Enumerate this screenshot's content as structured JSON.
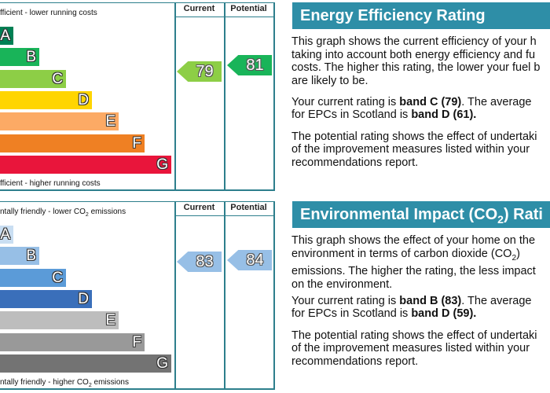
{
  "panels": [
    {
      "scale": {
        "header_current": "Current",
        "header_potential": "Potential",
        "top_label": [
          "fficient - lower running costs"
        ],
        "bottom_label": [
          "fficient - higher running costs"
        ],
        "bands": [
          {
            "letter": "A",
            "color": "#008054"
          },
          {
            "letter": "B",
            "color": "#19b459"
          },
          {
            "letter": "C",
            "color": "#8dce46"
          },
          {
            "letter": "D",
            "color": "#ffd500"
          },
          {
            "letter": "E",
            "color": "#fcaa65"
          },
          {
            "letter": "F",
            "color": "#ef8023"
          },
          {
            "letter": "G",
            "color": "#e9153b"
          }
        ],
        "current": {
          "rating": 79,
          "color": "#8dce46"
        },
        "potential": {
          "rating": 81,
          "color": "#19b459"
        }
      },
      "title": [
        "Energy Efficiency Rating"
      ],
      "paragraphs": [
        [
          [
            "This graph shows the current efficiency of your h"
          ],
          [
            "taking into account both energy efficiency and fu"
          ],
          [
            "costs. The higher this rating, the lower your fuel b"
          ],
          [
            "are likely to be."
          ]
        ],
        [
          [
            "Your current rating is ",
            {
              "bold": "band C (79)"
            },
            ". The average"
          ],
          [
            "for EPCs in Scotland is ",
            {
              "bold": "band D (61)."
            }
          ]
        ],
        [
          [
            "The potential rating shows the effect of undertaki"
          ],
          [
            "of the improvement measures listed within your"
          ],
          [
            "recommendations report."
          ]
        ]
      ]
    },
    {
      "scale": {
        "header_current": "Current",
        "header_potential": "Potential",
        "top_label": [
          "ntally friendly - lower CO",
          {
            "sub": "2"
          },
          " emissions"
        ],
        "bottom_label": [
          "ntally friendly - higher CO",
          {
            "sub": "2"
          },
          " emissions"
        ],
        "bands": [
          {
            "letter": "A",
            "color": "#c9def2"
          },
          {
            "letter": "B",
            "color": "#97bfe6"
          },
          {
            "letter": "C",
            "color": "#5b9bd8"
          },
          {
            "letter": "D",
            "color": "#3a6fba"
          },
          {
            "letter": "E",
            "color": "#bdbdbd"
          },
          {
            "letter": "F",
            "color": "#999999"
          },
          {
            "letter": "G",
            "color": "#737373"
          }
        ],
        "current": {
          "rating": 83,
          "color": "#97bfe6"
        },
        "potential": {
          "rating": 84,
          "color": "#97bfe6"
        }
      },
      "title": [
        "Environmental Impact (CO",
        {
          "sub": "2"
        },
        ") Rati"
      ],
      "paragraphs": [
        [
          [
            "This graph shows the effect of your home on the"
          ],
          [
            "environment in terms of carbon dioxide (CO",
            {
              "sub": "2"
            },
            ")"
          ],
          [
            "emissions. The higher the rating, the less impact"
          ],
          [
            "on the environment."
          ]
        ],
        [
          [
            "Your current rating is ",
            {
              "bold": "band B (83)"
            },
            ". The average"
          ],
          [
            "for EPCs in Scotland is ",
            {
              "bold": "band D (59)."
            }
          ]
        ],
        [
          [
            "The potential rating shows the effect of undertaki"
          ],
          [
            "of the improvement measures listed within your"
          ],
          [
            "recommendations report."
          ]
        ]
      ]
    }
  ]
}
